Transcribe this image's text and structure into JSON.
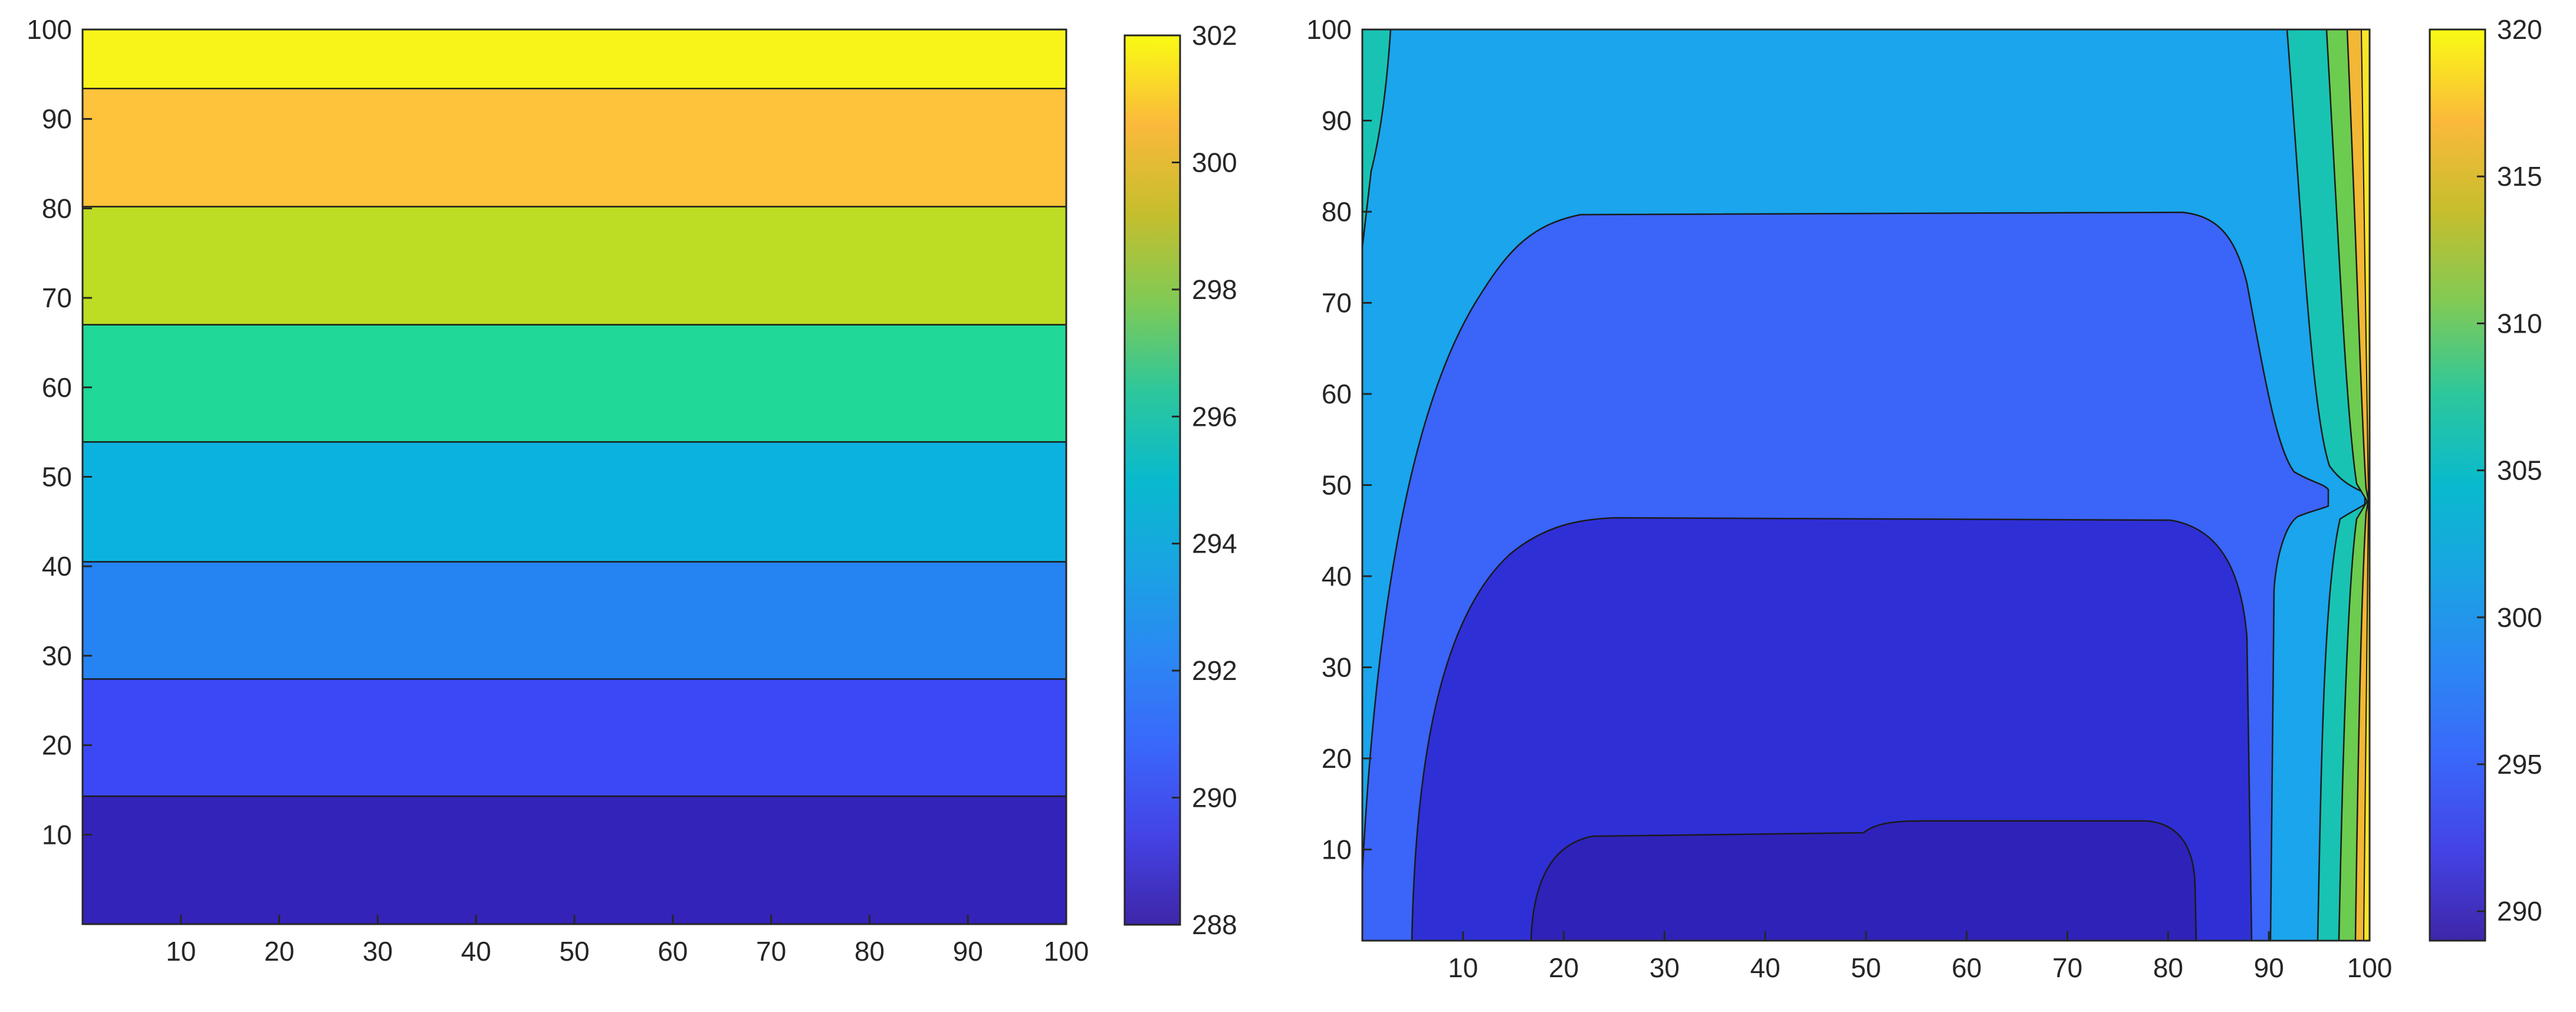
{
  "chart_data": [
    {
      "type": "heatmap",
      "style": "filled-contour",
      "title": "",
      "xlabel": "",
      "ylabel": "",
      "xlim": [
        0,
        100
      ],
      "ylim": [
        0,
        100
      ],
      "xticks": [
        10,
        20,
        30,
        40,
        50,
        60,
        70,
        80,
        90,
        100
      ],
      "yticks": [
        10,
        20,
        30,
        40,
        50,
        60,
        70,
        80,
        90,
        100
      ],
      "grid": false,
      "colormap": "parula",
      "contours": [
        {
          "y_from": 0,
          "y_to": 14.3,
          "level": 288,
          "color": "#3323b8"
        },
        {
          "y_from": 14.3,
          "y_to": 27.4,
          "level": 290,
          "color": "#3c48f6"
        },
        {
          "y_from": 27.4,
          "y_to": 40.5,
          "level": 292,
          "color": "#2583f2"
        },
        {
          "y_from": 40.5,
          "y_to": 53.9,
          "level": 294,
          "color": "#0cb2df"
        },
        {
          "y_from": 53.9,
          "y_to": 67.0,
          "level": 296,
          "color": "#20d898"
        },
        {
          "y_from": 67.0,
          "y_to": 80.2,
          "level": 298,
          "color": "#bddc24"
        },
        {
          "y_from": 80.2,
          "y_to": 93.4,
          "level": 300,
          "color": "#fec23b"
        },
        {
          "y_from": 93.4,
          "y_to": 100,
          "level": 302,
          "color": "#f8f41a"
        }
      ],
      "colorbar": {
        "min": 288,
        "max": 302,
        "ticks": [
          288,
          290,
          292,
          294,
          296,
          298,
          300,
          302
        ]
      }
    },
    {
      "type": "heatmap",
      "style": "filled-contour",
      "title": "",
      "xlabel": "",
      "ylabel": "",
      "xlim": [
        0,
        100
      ],
      "ylim": [
        0,
        100
      ],
      "xticks": [
        10,
        20,
        30,
        40,
        50,
        60,
        70,
        80,
        90,
        100
      ],
      "yticks": [
        10,
        20,
        30,
        40,
        50,
        60,
        70,
        80,
        90,
        100
      ],
      "grid": false,
      "colormap": "parula",
      "contours": [
        {
          "region": "top band",
          "level": 300,
          "color": "#1aa5ec"
        },
        {
          "region": "middle basin",
          "level": 296,
          "color": "#3b64f8"
        },
        {
          "region": "lower basin",
          "level": 292,
          "color": "#2f2fd6"
        },
        {
          "region": "bottom pool",
          "level": 290,
          "color": "#2f22b8"
        },
        {
          "region": "left edge",
          "level": 304,
          "color": "#18c3b3"
        },
        {
          "region": "right boundary",
          "levels": [
            304,
            308,
            312,
            316
          ],
          "colors": [
            "#18c3b3",
            "#6ccc4f",
            "#f2b734",
            "#f8e52a"
          ]
        }
      ],
      "colorbar": {
        "min": 289,
        "max": 320,
        "ticks": [
          290,
          295,
          300,
          305,
          310,
          315,
          320
        ]
      }
    }
  ]
}
